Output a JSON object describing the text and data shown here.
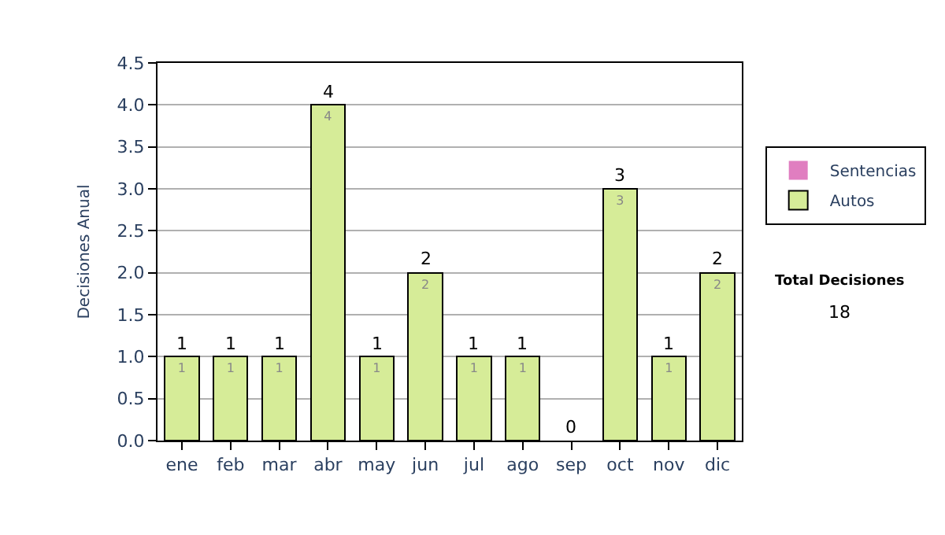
{
  "chart_data": {
    "type": "bar",
    "stacked": true,
    "ylabel": "Decisiones Anual",
    "categories": [
      "ene",
      "feb",
      "mar",
      "abr",
      "may",
      "jun",
      "jul",
      "ago",
      "sep",
      "oct",
      "nov",
      "dic"
    ],
    "series": [
      {
        "name": "Sentencias",
        "color": "#e07ec0",
        "values": [
          0,
          0,
          0,
          0,
          0,
          0,
          0,
          0,
          0,
          0,
          0,
          0
        ]
      },
      {
        "name": "Autos",
        "color": "#d6ec98",
        "values": [
          1,
          1,
          1,
          4,
          1,
          2,
          1,
          1,
          0,
          3,
          1,
          2
        ],
        "value_labels": [
          "1",
          "1",
          "1",
          "4",
          "1",
          "2",
          "1",
          "1",
          null,
          "3",
          "1",
          "2"
        ]
      }
    ],
    "totals": [
      "1",
      "1",
      "1",
      "4",
      "1",
      "2",
      "1",
      "1",
      "0",
      "3",
      "1",
      "2"
    ],
    "ylim": [
      0,
      4.5
    ],
    "yticks": [
      "0.0",
      "0.5",
      "1.0",
      "1.5",
      "2.0",
      "2.5",
      "3.0",
      "3.5",
      "4.0",
      "4.5"
    ],
    "grid": "y",
    "legend": "right",
    "annotations": [
      "Total Decisiones",
      "18"
    ]
  }
}
